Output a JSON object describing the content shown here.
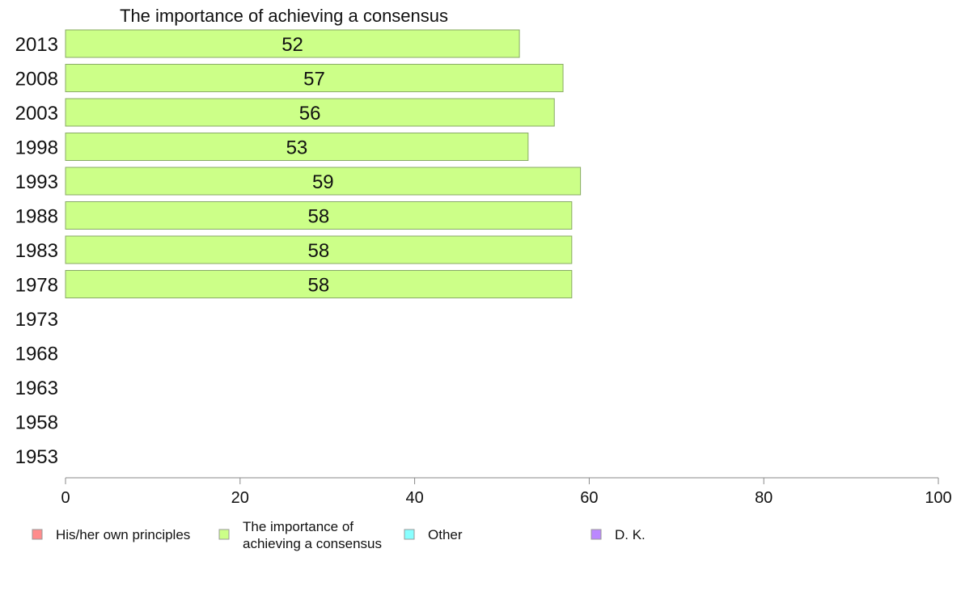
{
  "chart_data": {
    "type": "bar",
    "orientation": "horizontal",
    "title": "The importance of achieving a consensus",
    "categories": [
      "2013",
      "2008",
      "2003",
      "1998",
      "1993",
      "1988",
      "1983",
      "1978",
      "1973",
      "1968",
      "1963",
      "1958",
      "1953"
    ],
    "values": [
      52,
      57,
      56,
      53,
      59,
      58,
      58,
      58,
      null,
      null,
      null,
      null,
      null
    ],
    "bar_color": "#ccff88",
    "bar_stroke": "#88aa66",
    "xlim": [
      0,
      100
    ],
    "xticks": [
      0,
      20,
      40,
      60,
      80,
      100
    ],
    "grid": false,
    "legend": {
      "placement": "bottom",
      "entries": [
        {
          "label": "His/her own principles",
          "color": "#ff8c8c"
        },
        {
          "label": "The importance of",
          "label_line2": "achieving a consensus",
          "color": "#ccff88"
        },
        {
          "label": "Other",
          "color": "#88ffff"
        },
        {
          "label": "D. K.",
          "color": "#bb88ff"
        }
      ]
    }
  }
}
